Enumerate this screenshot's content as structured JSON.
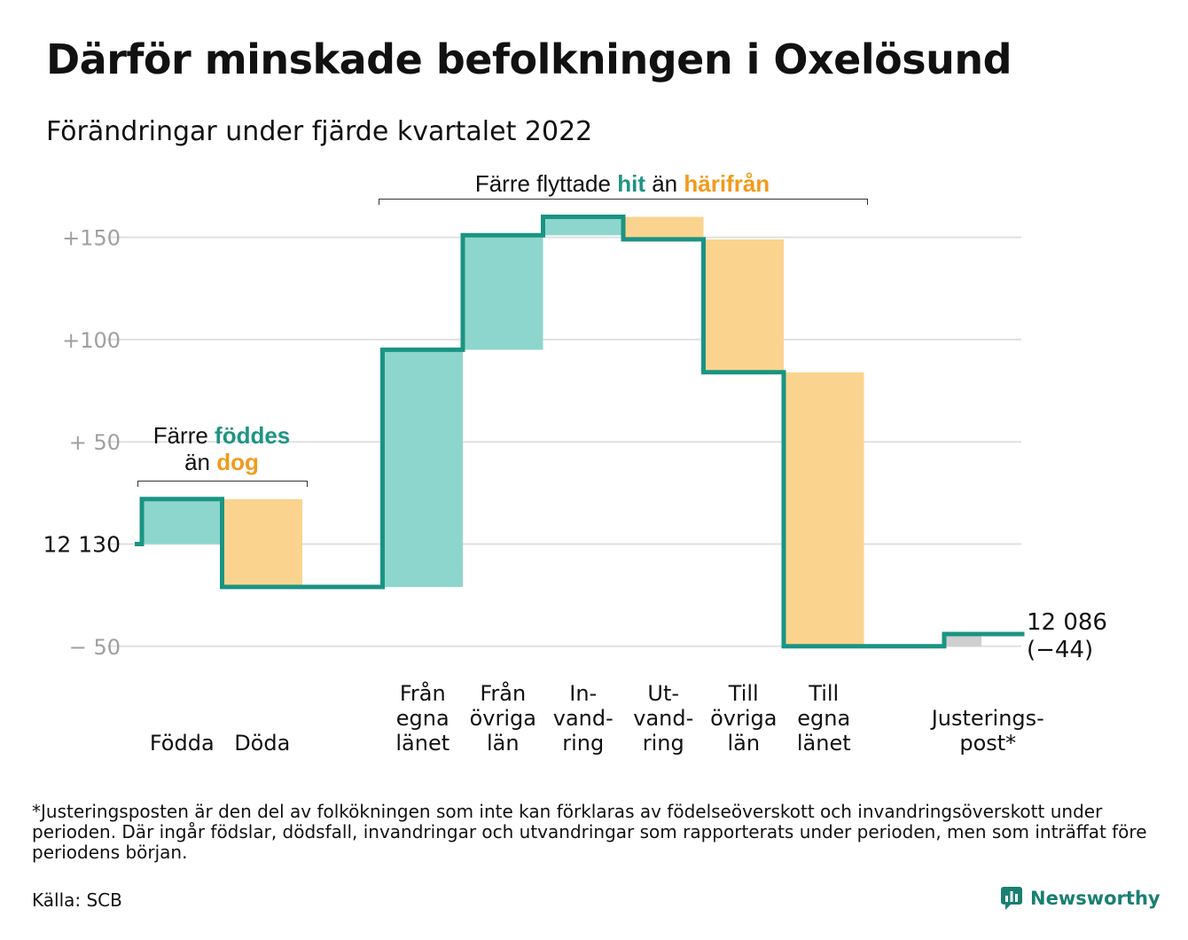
{
  "title": "Därför minskade befolkningen i Oxelösund",
  "subtitle": "Förändringar under fjärde kvartalet 2022",
  "annotations": {
    "births_pre": "Färre ",
    "births_word": "föddes",
    "deaths_pre": "än ",
    "deaths_word": "dog",
    "moves_pre": "Färre flyttade ",
    "moves_in": "hit",
    "moves_mid": " än ",
    "moves_out": "härifrån"
  },
  "colors": {
    "increase": "#8dd6cd",
    "decrease": "#fad48e",
    "adjustment": "#cfcfcf",
    "line": "#1a9483",
    "accent_teal": "#1e9484",
    "accent_orange": "#f29a1b",
    "grid": "#e0e0e0"
  },
  "chart_data": {
    "type": "waterfall",
    "start_value": 12130,
    "start_label": "12 130",
    "end_value": 12086,
    "end_label": "12 086",
    "end_change_label": "(−44)",
    "y_ticks": [
      {
        "value": 150,
        "label": "+150"
      },
      {
        "value": 100,
        "label": "+100"
      },
      {
        "value": 50,
        "label": "+ 50"
      },
      {
        "value": -50,
        "label": "− 50"
      }
    ],
    "ylim": [
      -56,
      166
    ],
    "grid": true,
    "steps": [
      {
        "label": [
          "Födda"
        ],
        "change": 22,
        "kind": "increase"
      },
      {
        "label": [
          "Döda"
        ],
        "change": -43,
        "kind": "decrease"
      },
      {
        "label": [],
        "change": 0,
        "kind": "gap"
      },
      {
        "label": [
          "Från",
          "egna",
          "länet"
        ],
        "change": 116,
        "kind": "increase"
      },
      {
        "label": [
          "Från",
          "övriga",
          "län"
        ],
        "change": 56,
        "kind": "increase"
      },
      {
        "label": [
          "In-",
          "vand-",
          "ring"
        ],
        "change": 9,
        "kind": "increase"
      },
      {
        "label": [
          "Ut-",
          "vand-",
          "ring"
        ],
        "change": -11,
        "kind": "decrease"
      },
      {
        "label": [
          "Till",
          "övriga",
          "län"
        ],
        "change": -65,
        "kind": "decrease"
      },
      {
        "label": [
          "Till",
          "egna",
          "länet"
        ],
        "change": -134,
        "kind": "decrease"
      },
      {
        "label": [],
        "change": 0,
        "kind": "gap"
      },
      {
        "label": [
          "Justerings-",
          "post*"
        ],
        "change": 6,
        "kind": "adjustment"
      }
    ]
  },
  "footnote": "*Justeringsposten är den del av folkökningen som inte kan förklaras av födelseöverskott och invandringsöverskott under perioden. Där ingår födslar, dödsfall, invandringar och utvandringar som rapporterats under perioden, men som inträffat före periodens början.",
  "source": "Källa: SCB",
  "brand": "Newsworthy",
  "brand_icon": "bar-chart-speech-icon"
}
